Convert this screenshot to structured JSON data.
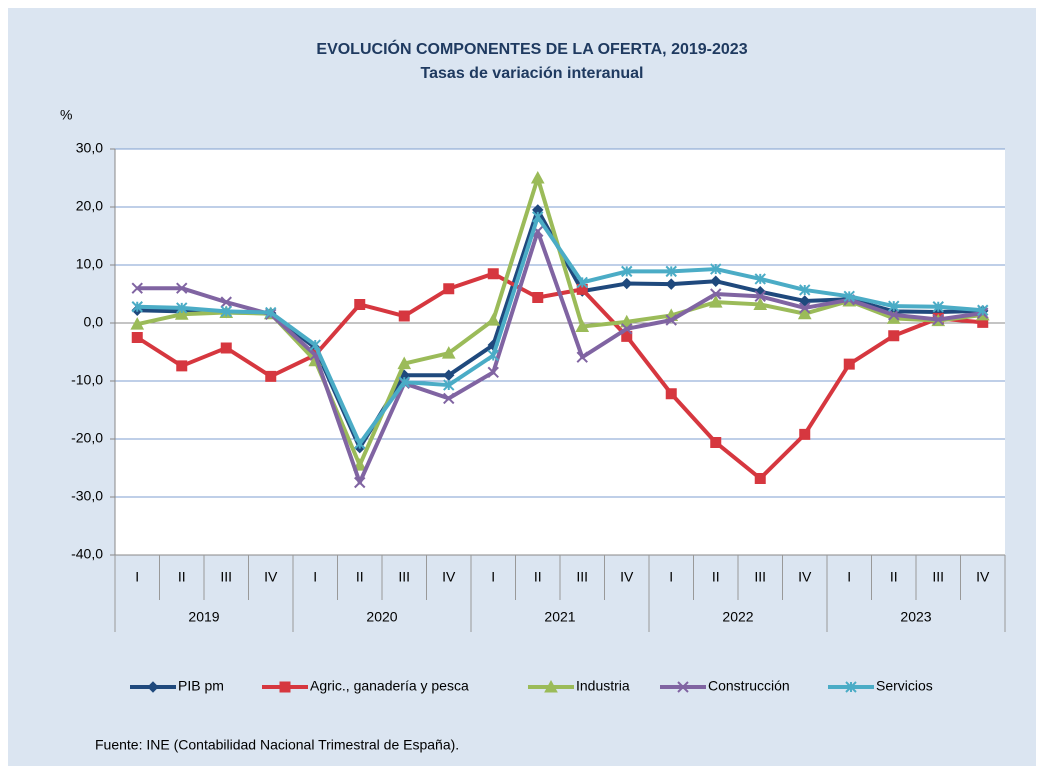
{
  "chart_data": {
    "type": "line",
    "title": "EVOLUCIÓN COMPONENTES DE LA OFERTA, 2019-2023",
    "subtitle": "Tasas de variación interanual",
    "y_label": "%",
    "categories": [
      "I",
      "II",
      "III",
      "IV",
      "I",
      "II",
      "III",
      "IV",
      "I",
      "II",
      "III",
      "IV",
      "I",
      "II",
      "III",
      "IV",
      "I",
      "II",
      "III",
      "IV"
    ],
    "category_groups": [
      "2019",
      "2020",
      "2021",
      "2022",
      "2023"
    ],
    "ylim": [
      -40,
      30
    ],
    "yticks": [
      {
        "value": 30,
        "label": "30,0"
      },
      {
        "value": 20,
        "label": "20,0"
      },
      {
        "value": 10,
        "label": "10,0"
      },
      {
        "value": 0,
        "label": "0,0"
      },
      {
        "value": -10,
        "label": "-10,0"
      },
      {
        "value": -20,
        "label": "-20,0"
      },
      {
        "value": -30,
        "label": "-30,0"
      },
      {
        "value": -40,
        "label": "-40,0"
      }
    ],
    "grid": true,
    "legend": "bottom",
    "series": [
      {
        "name": "PIB pm",
        "color": "#1f497d",
        "marker": "diamond",
        "values": [
          2.2,
          2.0,
          1.8,
          1.7,
          -4.3,
          -21.5,
          -9.0,
          -9.0,
          -3.8,
          19.5,
          5.5,
          6.8,
          6.7,
          7.2,
          5.4,
          3.8,
          4.1,
          2.0,
          1.9,
          2.1
        ]
      },
      {
        "name": "Agric., ganadería y pesca",
        "color": "#d6373f",
        "marker": "square",
        "values": [
          -2.5,
          -7.4,
          -4.3,
          -9.2,
          -5.5,
          3.2,
          1.2,
          5.9,
          8.5,
          4.4,
          5.8,
          -2.3,
          -12.2,
          -20.6,
          -26.8,
          -19.2,
          -7.1,
          -2.2,
          0.8,
          0.1
        ]
      },
      {
        "name": "Industria",
        "color": "#9bbb59",
        "marker": "triangle",
        "values": [
          -0.2,
          1.5,
          1.8,
          1.6,
          -6.5,
          -24.5,
          -7.0,
          -5.2,
          0.5,
          25.0,
          -0.6,
          0.2,
          1.3,
          3.6,
          3.2,
          1.6,
          3.8,
          0.8,
          0.4,
          1.4
        ]
      },
      {
        "name": "Construcción",
        "color": "#8064a2",
        "marker": "x",
        "values": [
          6.0,
          6.0,
          3.6,
          1.5,
          -5.5,
          -27.5,
          -10.4,
          -13.0,
          -8.5,
          15.8,
          -5.9,
          -1.0,
          0.5,
          5.0,
          4.6,
          2.6,
          4.0,
          1.4,
          0.6,
          1.7
        ]
      },
      {
        "name": "Servicios",
        "color": "#4bacc6",
        "marker": "star",
        "values": [
          2.8,
          2.6,
          2.0,
          1.8,
          -3.8,
          -20.8,
          -10.2,
          -10.7,
          -5.6,
          18.3,
          7.0,
          8.9,
          8.9,
          9.3,
          7.6,
          5.7,
          4.6,
          2.9,
          2.8,
          2.2
        ]
      }
    ],
    "source": "Fuente: INE (Contabilidad Nacional Trimestral de España)."
  }
}
